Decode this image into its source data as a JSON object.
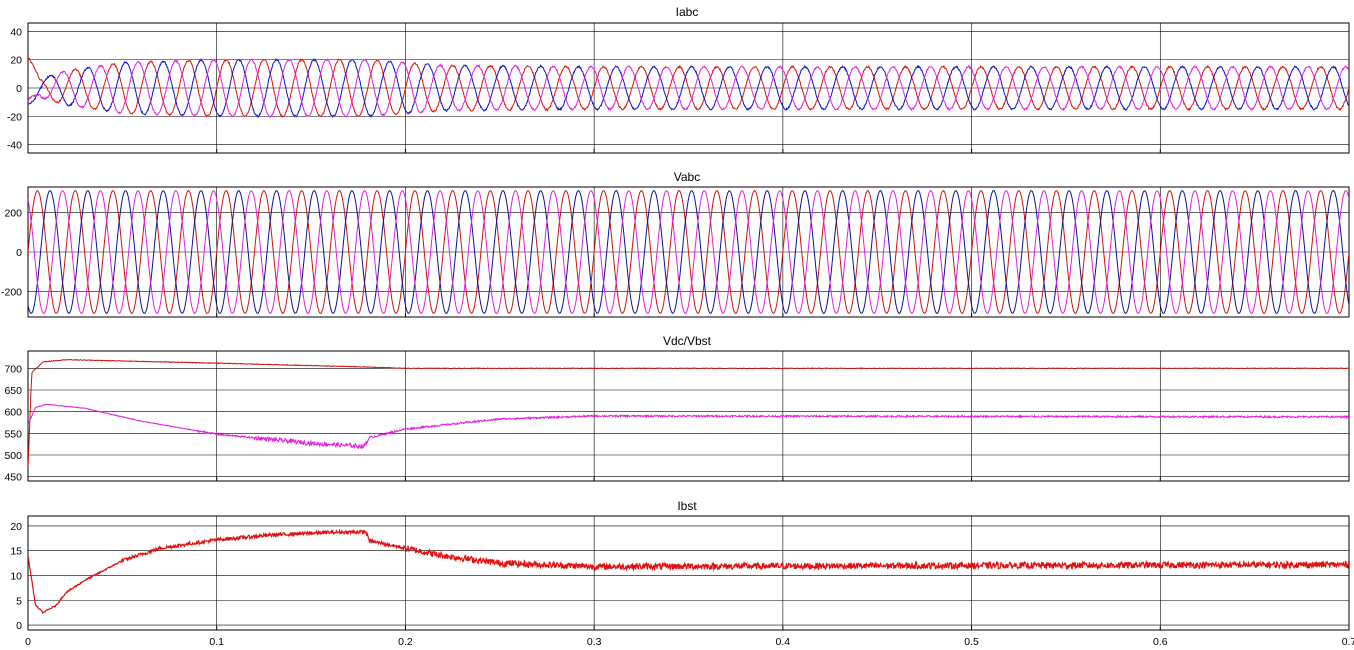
{
  "chart_data": [
    {
      "type": "line",
      "title": "Iabc",
      "ylim": [
        -46,
        46
      ],
      "yticks": [
        40,
        20,
        0,
        -20,
        -40
      ],
      "xlim": [
        0,
        0.7
      ],
      "xticks": [
        0,
        0.1,
        0.2,
        0.3,
        0.4,
        0.5,
        0.6,
        0.7
      ],
      "grid": true,
      "signal": "three-phase current, 50 Hz; amplitude settles from about 20 to about 15 after t = 0.2 with a startup transient near t = 0",
      "series": [
        {
          "color": "#e01010",
          "phase_deg": 0
        },
        {
          "color": "#1010d0",
          "phase_deg": -120
        },
        {
          "color": "#e020e0",
          "phase_deg": 120
        }
      ],
      "amplitude_points": [
        [
          0,
          4
        ],
        [
          0.02,
          12
        ],
        [
          0.05,
          18
        ],
        [
          0.1,
          20
        ],
        [
          0.18,
          20
        ],
        [
          0.22,
          16
        ],
        [
          0.3,
          15
        ],
        [
          0.7,
          15
        ]
      ]
    },
    {
      "type": "line",
      "title": "Vabc",
      "ylim": [
        -330,
        330
      ],
      "yticks": [
        200,
        0,
        -200
      ],
      "xlim": [
        0,
        0.7
      ],
      "grid": true,
      "signal": "three-phase grid voltage, 50 Hz, amplitude about 311",
      "series": [
        {
          "color": "#c81414",
          "phase_deg": 0
        },
        {
          "color": "#101090",
          "phase_deg": -120
        },
        {
          "color": "#e020e0",
          "phase_deg": 120
        }
      ],
      "amplitude": 311
    },
    {
      "type": "line",
      "title": "Vdc/Vbst",
      "ylim": [
        440,
        740
      ],
      "yticks": [
        700,
        650,
        600,
        550,
        500,
        450
      ],
      "xlim": [
        0,
        0.7
      ],
      "grid": true,
      "series": [
        {
          "color": "#c81414",
          "points": [
            [
              0,
              470
            ],
            [
              0.002,
              690
            ],
            [
              0.008,
              715
            ],
            [
              0.02,
              720
            ],
            [
              0.05,
              717
            ],
            [
              0.1,
              712
            ],
            [
              0.18,
              703
            ],
            [
              0.2,
              700
            ],
            [
              0.7,
              700
            ]
          ]
        },
        {
          "color": "#e020e0",
          "points": [
            [
              0,
              570
            ],
            [
              0.004,
              610
            ],
            [
              0.01,
              617
            ],
            [
              0.03,
              608
            ],
            [
              0.06,
              578
            ],
            [
              0.1,
              548
            ],
            [
              0.15,
              527
            ],
            [
              0.178,
              520
            ],
            [
              0.181,
              540
            ],
            [
              0.2,
              560
            ],
            [
              0.25,
              583
            ],
            [
              0.3,
              590
            ],
            [
              0.7,
              588
            ]
          ]
        }
      ]
    },
    {
      "type": "line",
      "title": "Ibst",
      "ylim": [
        -1,
        22
      ],
      "yticks": [
        20,
        15,
        10,
        5,
        0
      ],
      "xlim": [
        0,
        0.7
      ],
      "grid": true,
      "series": [
        {
          "color": "#e01010",
          "points": [
            [
              0,
              14
            ],
            [
              0.004,
              4
            ],
            [
              0.008,
              2.5
            ],
            [
              0.015,
              4
            ],
            [
              0.02,
              6.5
            ],
            [
              0.03,
              9
            ],
            [
              0.05,
              13
            ],
            [
              0.07,
              15.5
            ],
            [
              0.1,
              17.2
            ],
            [
              0.13,
              18.2
            ],
            [
              0.16,
              18.7
            ],
            [
              0.179,
              18.8
            ],
            [
              0.181,
              17
            ],
            [
              0.2,
              15.5
            ],
            [
              0.22,
              14
            ],
            [
              0.25,
              12.5
            ],
            [
              0.3,
              11.8
            ],
            [
              0.7,
              12.2
            ]
          ]
        }
      ]
    }
  ]
}
